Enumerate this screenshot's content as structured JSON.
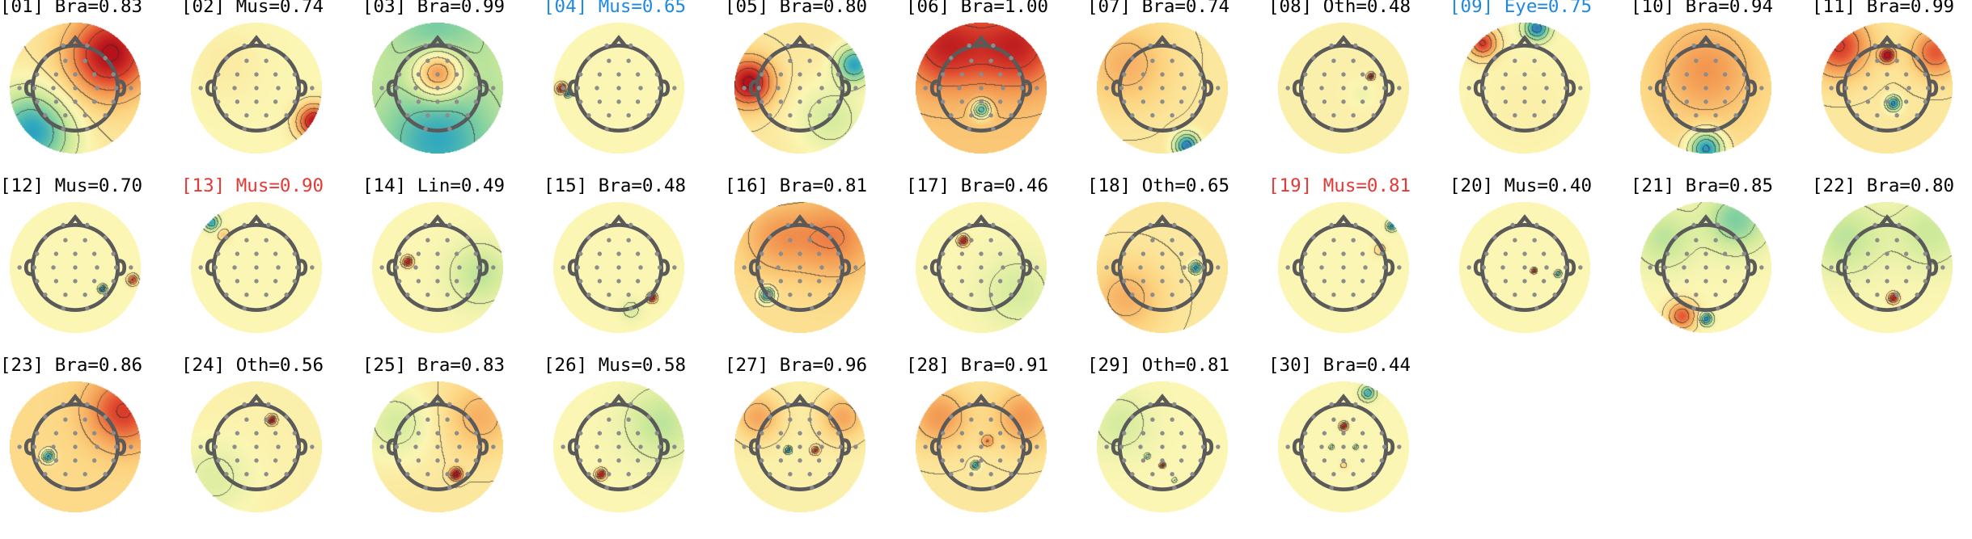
{
  "colors": {
    "label_default": "#000000",
    "label_blue": "#1e88e5",
    "label_red": "#e53935",
    "contour": "#333333",
    "head": "#5a5a5a",
    "electrode": "#8c8c8c",
    "colormap": [
      "#3d55b0",
      "#2fa8bf",
      "#7fcfa0",
      "#cde99a",
      "#fbf6b3",
      "#fcd37f",
      "#f39a52",
      "#e0472e",
      "#b5121b"
    ]
  },
  "components": [
    {
      "index": "[01]",
      "label": "Bra",
      "score": "0.83",
      "text": "[01] Bra=0.83",
      "highlight": "none",
      "icon": "scalp-topography-icon",
      "map": {
        "base": 0.55,
        "blobs": [
          [
            0.6,
            -0.6,
            0.9,
            0.35
          ],
          [
            -0.7,
            0.7,
            -0.9,
            0.35
          ],
          [
            0.0,
            0.1,
            0.12,
            0.4
          ]
        ]
      }
    },
    {
      "index": "[02]",
      "label": "Mus",
      "score": "0.74",
      "text": "[02] Mus=0.74",
      "highlight": "none",
      "icon": "scalp-topography-icon",
      "map": {
        "base": 0.5,
        "blobs": [
          [
            0.95,
            0.55,
            1.0,
            0.14
          ],
          [
            -0.5,
            -0.4,
            0.08,
            0.3
          ]
        ]
      }
    },
    {
      "index": "[03]",
      "label": "Bra",
      "score": "0.99",
      "text": "[03] Bra=0.99",
      "highlight": "none",
      "icon": "scalp-topography-icon",
      "map": {
        "base": 0.38,
        "blobs": [
          [
            0.0,
            -0.25,
            0.95,
            0.2
          ],
          [
            0.0,
            0.85,
            -0.5,
            0.45
          ],
          [
            0.0,
            -0.9,
            -0.3,
            0.35
          ]
        ]
      }
    },
    {
      "index": "[04]",
      "label": "Mus",
      "score": "0.65",
      "text": "[04] Mus=0.65",
      "highlight": "blue",
      "icon": "scalp-topography-icon",
      "map": {
        "base": 0.5,
        "blobs": [
          [
            -0.95,
            0.0,
            1.0,
            0.04
          ],
          [
            -0.85,
            0.08,
            -0.9,
            0.03
          ]
        ]
      }
    },
    {
      "index": "[05]",
      "label": "Bra",
      "score": "0.80",
      "text": "[05] Bra=0.80",
      "highlight": "none",
      "icon": "scalp-topography-icon",
      "map": {
        "base": 0.55,
        "blobs": [
          [
            -0.85,
            -0.1,
            0.95,
            0.2
          ],
          [
            0.9,
            -0.4,
            -0.85,
            0.15
          ],
          [
            0.5,
            0.5,
            -0.3,
            0.3
          ]
        ]
      }
    },
    {
      "index": "[06]",
      "label": "Bra",
      "score": "1.00",
      "text": "[06] Bra=1.00",
      "highlight": "none",
      "icon": "scalp-topography-icon",
      "map": {
        "base": 0.65,
        "blobs": [
          [
            0.0,
            0.35,
            -1.0,
            0.07
          ],
          [
            -0.6,
            -0.7,
            0.6,
            0.35
          ],
          [
            0.6,
            -0.7,
            0.6,
            0.35
          ]
        ]
      }
    },
    {
      "index": "[07]",
      "label": "Bra",
      "score": "0.74",
      "text": "[07] Bra=0.74",
      "highlight": "none",
      "icon": "scalp-topography-icon",
      "map": {
        "base": 0.55,
        "blobs": [
          [
            0.4,
            0.95,
            -1.0,
            0.1
          ],
          [
            -0.6,
            -0.4,
            0.3,
            0.35
          ]
        ]
      }
    },
    {
      "index": "[08]",
      "label": "Oth",
      "score": "0.48",
      "text": "[08] Oth=0.48",
      "highlight": "none",
      "icon": "scalp-topography-icon",
      "map": {
        "base": 0.52,
        "blobs": [
          [
            0.45,
            -0.2,
            1.0,
            0.025
          ],
          [
            0.3,
            0.1,
            -0.1,
            0.1
          ]
        ]
      }
    },
    {
      "index": "[09]",
      "label": "Eye",
      "score": "0.75",
      "text": "[09] Eye=0.75",
      "highlight": "blue",
      "icon": "scalp-topography-icon",
      "map": {
        "base": 0.5,
        "blobs": [
          [
            0.2,
            -1.0,
            -0.9,
            0.1
          ],
          [
            -0.7,
            -0.75,
            0.8,
            0.12
          ],
          [
            0.0,
            0.3,
            0.05,
            0.4
          ]
        ]
      }
    },
    {
      "index": "[10]",
      "label": "Bra",
      "score": "0.94",
      "text": "[10] Bra=0.94",
      "highlight": "none",
      "icon": "scalp-topography-icon",
      "map": {
        "base": 0.58,
        "blobs": [
          [
            0.0,
            1.0,
            -1.0,
            0.14
          ],
          [
            0.0,
            -0.3,
            0.35,
            0.4
          ]
        ]
      }
    },
    {
      "index": "[11]",
      "label": "Bra",
      "score": "0.99",
      "text": "[11] Bra=0.99",
      "highlight": "none",
      "icon": "scalp-topography-icon",
      "map": {
        "base": 0.55,
        "blobs": [
          [
            0.0,
            -0.55,
            1.0,
            0.06
          ],
          [
            0.1,
            0.25,
            -0.95,
            0.06
          ],
          [
            -0.8,
            -0.7,
            0.7,
            0.25
          ],
          [
            0.8,
            -0.6,
            0.6,
            0.2
          ]
        ]
      }
    },
    {
      "index": "[12]",
      "label": "Mus",
      "score": "0.70",
      "text": "[12] Mus=0.70",
      "highlight": "none",
      "icon": "scalp-topography-icon",
      "map": {
        "base": 0.5,
        "blobs": [
          [
            0.45,
            0.35,
            -0.95,
            0.03
          ],
          [
            0.95,
            0.2,
            0.8,
            0.04
          ]
        ]
      }
    },
    {
      "index": "[13]",
      "label": "Mus",
      "score": "0.90",
      "text": "[13] Mus=0.90",
      "highlight": "red",
      "icon": "scalp-topography-icon",
      "map": {
        "base": 0.5,
        "blobs": [
          [
            -0.75,
            -0.75,
            -0.75,
            0.06
          ],
          [
            -0.55,
            -0.55,
            0.3,
            0.05
          ]
        ]
      }
    },
    {
      "index": "[14]",
      "label": "Lin",
      "score": "0.49",
      "text": "[14] Lin=0.49",
      "highlight": "none",
      "icon": "scalp-topography-icon",
      "map": {
        "base": 0.5,
        "blobs": [
          [
            -0.5,
            -0.1,
            1.0,
            0.04
          ],
          [
            0.7,
            0.1,
            -0.3,
            0.25
          ]
        ]
      }
    },
    {
      "index": "[15]",
      "label": "Bra",
      "score": "0.48",
      "text": "[15] Bra=0.48",
      "highlight": "none",
      "icon": "scalp-topography-icon",
      "map": {
        "base": 0.5,
        "blobs": [
          [
            0.55,
            0.5,
            1.0,
            0.035
          ],
          [
            0.2,
            0.7,
            -0.2,
            0.08
          ]
        ]
      }
    },
    {
      "index": "[16]",
      "label": "Bra",
      "score": "0.81",
      "text": "[16] Bra=0.81",
      "highlight": "none",
      "icon": "scalp-topography-icon",
      "map": {
        "base": 0.58,
        "blobs": [
          [
            -0.55,
            0.45,
            -1.0,
            0.06
          ],
          [
            0.6,
            -0.5,
            0.4,
            0.35
          ],
          [
            -0.4,
            -0.5,
            0.3,
            0.3
          ]
        ]
      }
    },
    {
      "index": "[17]",
      "label": "Bra",
      "score": "0.46",
      "text": "[17] Bra=0.46",
      "highlight": "none",
      "icon": "scalp-topography-icon",
      "map": {
        "base": 0.5,
        "blobs": [
          [
            -0.3,
            -0.45,
            1.0,
            0.04
          ],
          [
            0.6,
            0.4,
            -0.2,
            0.3
          ]
        ]
      }
    },
    {
      "index": "[18]",
      "label": "Oth",
      "score": "0.65",
      "text": "[18] Oth=0.65",
      "highlight": "none",
      "icon": "scalp-topography-icon",
      "map": {
        "base": 0.55,
        "blobs": [
          [
            0.55,
            0.0,
            -0.95,
            0.05
          ],
          [
            -0.6,
            0.5,
            0.3,
            0.3
          ]
        ]
      }
    },
    {
      "index": "[19]",
      "label": "Mus",
      "score": "0.81",
      "text": "[19] Mus=0.81",
      "highlight": "red",
      "icon": "scalp-topography-icon",
      "map": {
        "base": 0.5,
        "blobs": [
          [
            0.8,
            -0.7,
            -0.85,
            0.04
          ],
          [
            0.6,
            -0.3,
            0.25,
            0.05
          ]
        ]
      }
    },
    {
      "index": "[20]",
      "label": "Mus",
      "score": "0.40",
      "text": "[20] Mus=0.40",
      "highlight": "none",
      "icon": "scalp-topography-icon",
      "map": {
        "base": 0.5,
        "blobs": [
          [
            0.15,
            0.05,
            1.0,
            0.02
          ],
          [
            0.55,
            0.1,
            -0.7,
            0.025
          ]
        ]
      }
    },
    {
      "index": "[21]",
      "label": "Bra",
      "score": "0.85",
      "text": "[21] Bra=0.85",
      "highlight": "none",
      "icon": "scalp-topography-icon",
      "map": {
        "base": 0.5,
        "blobs": [
          [
            0.0,
            0.85,
            -0.9,
            0.05
          ],
          [
            -0.4,
            0.8,
            0.7,
            0.12
          ],
          [
            0.5,
            -0.8,
            -0.5,
            0.25
          ],
          [
            -0.7,
            -0.5,
            -0.3,
            0.25
          ]
        ]
      }
    },
    {
      "index": "[22]",
      "label": "Bra",
      "score": "0.80",
      "text": "[22] Bra=0.80",
      "highlight": "none",
      "icon": "scalp-topography-icon",
      "map": {
        "base": 0.5,
        "blobs": [
          [
            0.1,
            0.5,
            1.0,
            0.04
          ],
          [
            -0.7,
            -0.5,
            -0.3,
            0.3
          ],
          [
            0.7,
            -0.6,
            -0.25,
            0.3
          ]
        ]
      }
    },
    {
      "index": "[23]",
      "label": "Bra",
      "score": "0.86",
      "text": "[23] Bra=0.86",
      "highlight": "none",
      "icon": "scalp-topography-icon",
      "map": {
        "base": 0.6,
        "blobs": [
          [
            -0.45,
            0.15,
            -1.0,
            0.05
          ],
          [
            0.8,
            -0.6,
            0.6,
            0.3
          ]
        ]
      }
    },
    {
      "index": "[24]",
      "label": "Oth",
      "score": "0.56",
      "text": "[24] Oth=0.56",
      "highlight": "none",
      "icon": "scalp-topography-icon",
      "map": {
        "base": 0.52,
        "blobs": [
          [
            0.25,
            -0.45,
            1.0,
            0.035
          ],
          [
            -0.7,
            0.5,
            -0.2,
            0.3
          ]
        ]
      }
    },
    {
      "index": "[25]",
      "label": "Bra",
      "score": "0.83",
      "text": "[25] Bra=0.83",
      "highlight": "none",
      "icon": "scalp-topography-icon",
      "map": {
        "base": 0.55,
        "blobs": [
          [
            0.3,
            0.45,
            1.0,
            0.05
          ],
          [
            -0.7,
            -0.4,
            -0.3,
            0.3
          ],
          [
            0.7,
            -0.5,
            0.3,
            0.3
          ]
        ]
      }
    },
    {
      "index": "[26]",
      "label": "Mus",
      "score": "0.58",
      "text": "[26] Mus=0.58",
      "highlight": "none",
      "icon": "scalp-topography-icon",
      "map": {
        "base": 0.5,
        "blobs": [
          [
            -0.3,
            0.45,
            1.0,
            0.04
          ],
          [
            0.7,
            -0.4,
            -0.3,
            0.3
          ]
        ]
      }
    },
    {
      "index": "[27]",
      "label": "Bra",
      "score": "0.96",
      "text": "[27] Bra=0.96",
      "highlight": "none",
      "icon": "scalp-topography-icon",
      "map": {
        "base": 0.52,
        "blobs": [
          [
            -0.2,
            0.05,
            -0.9,
            0.03
          ],
          [
            0.25,
            0.05,
            0.8,
            0.03
          ],
          [
            -0.7,
            -0.5,
            0.4,
            0.2
          ],
          [
            0.7,
            -0.5,
            0.4,
            0.2
          ]
        ]
      }
    },
    {
      "index": "[28]",
      "label": "Bra",
      "score": "0.91",
      "text": "[28] Bra=0.91",
      "highlight": "none",
      "icon": "scalp-topography-icon",
      "map": {
        "base": 0.55,
        "blobs": [
          [
            -0.1,
            0.3,
            -0.9,
            0.035
          ],
          [
            0.1,
            -0.1,
            0.4,
            0.05
          ],
          [
            -0.7,
            -0.5,
            0.4,
            0.25
          ],
          [
            0.7,
            -0.5,
            0.4,
            0.25
          ]
        ]
      }
    },
    {
      "index": "[29]",
      "label": "Oth",
      "score": "0.81",
      "text": "[29] Oth=0.81",
      "highlight": "none",
      "icon": "scalp-topography-icon",
      "map": {
        "base": 0.5,
        "blobs": [
          [
            0.0,
            0.3,
            1.0,
            0.02
          ],
          [
            -0.25,
            0.15,
            -0.5,
            0.02
          ],
          [
            0.2,
            0.55,
            -0.35,
            0.02
          ],
          [
            -0.7,
            -0.4,
            -0.2,
            0.25
          ]
        ]
      }
    },
    {
      "index": "[30]",
      "label": "Bra",
      "score": "0.44",
      "text": "[30] Bra=0.44",
      "highlight": "none",
      "icon": "scalp-topography-icon",
      "map": {
        "base": 0.5,
        "blobs": [
          [
            0.0,
            -0.35,
            1.0,
            0.03
          ],
          [
            -0.2,
            0.0,
            -0.45,
            0.02
          ],
          [
            0.2,
            0.0,
            -0.45,
            0.02
          ],
          [
            0.0,
            0.3,
            0.2,
            0.03
          ],
          [
            0.4,
            -0.9,
            -0.7,
            0.06
          ]
        ]
      }
    }
  ]
}
